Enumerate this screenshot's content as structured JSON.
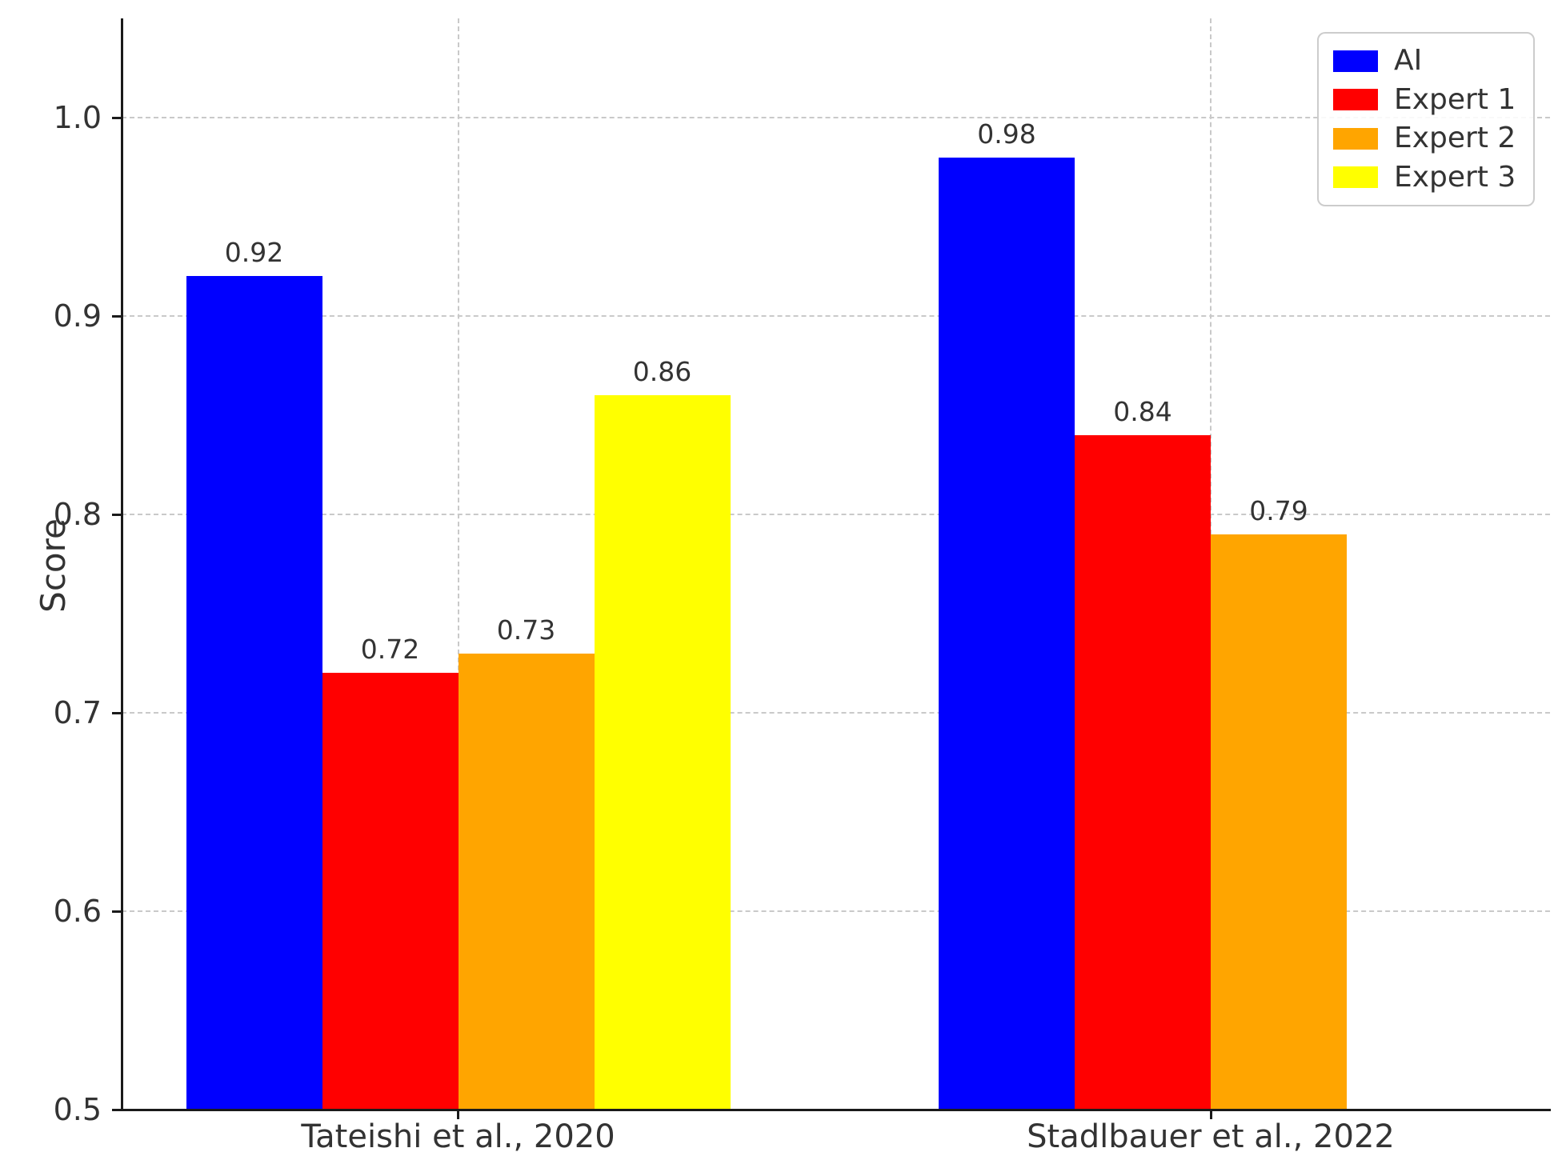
{
  "chart_data": {
    "type": "bar",
    "title": "",
    "xlabel": "",
    "ylabel": "Score",
    "categories": [
      "Tateishi et al., 2020",
      "Stadlbauer et al., 2022"
    ],
    "series": [
      {
        "name": "AI",
        "color": "#0000ff",
        "values": [
          0.92,
          0.98
        ]
      },
      {
        "name": "Expert 1",
        "color": "#ff0000",
        "values": [
          0.72,
          0.84
        ]
      },
      {
        "name": "Expert 2",
        "color": "#ffa500",
        "values": [
          0.73,
          0.79
        ]
      },
      {
        "name": "Expert 3",
        "color": "#ffff00",
        "values": [
          0.86,
          null
        ]
      }
    ],
    "bar_value_labels": [
      "0.92",
      "0.72",
      "0.73",
      "0.86",
      "0.98",
      "0.84",
      "0.79"
    ],
    "ylim": [
      0.5,
      1.05
    ],
    "yticks": [
      0.5,
      0.6,
      0.7,
      0.8,
      0.9,
      1.0
    ],
    "ytick_labels": [
      "0.5",
      "0.6",
      "0.7",
      "0.8",
      "0.9",
      "1.0"
    ],
    "grid": "dashed, both axes at tick positions",
    "legend_position": "upper right",
    "legend_entries": [
      "AI",
      "Expert 1",
      "Expert 2",
      "Expert 3"
    ]
  },
  "colors": {
    "background": "#ffffff",
    "gridline": "#c9c9c9",
    "spine": "#1a1a1a",
    "text": "#333333",
    "legend_border": "#cccccc"
  }
}
